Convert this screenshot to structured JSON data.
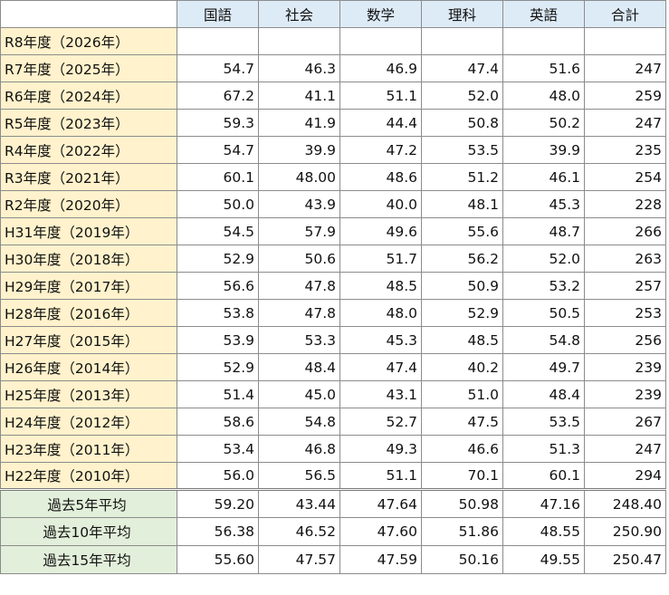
{
  "headers": [
    "国語",
    "社会",
    "数学",
    "理科",
    "英語",
    "合計"
  ],
  "rows": [
    {
      "label": "R8年度（2026年）",
      "values": [
        "",
        "",
        "",
        "",
        "",
        ""
      ]
    },
    {
      "label": "R7年度（2025年）",
      "values": [
        "54.7",
        "46.3",
        "46.9",
        "47.4",
        "51.6",
        "247"
      ]
    },
    {
      "label": "R6年度（2024年）",
      "values": [
        "67.2",
        "41.1",
        "51.1",
        "52.0",
        "48.0",
        "259"
      ]
    },
    {
      "label": "R5年度（2023年）",
      "values": [
        "59.3",
        "41.9",
        "44.4",
        "50.8",
        "50.2",
        "247"
      ]
    },
    {
      "label": "R4年度（2022年）",
      "values": [
        "54.7",
        "39.9",
        "47.2",
        "53.5",
        "39.9",
        "235"
      ]
    },
    {
      "label": "R3年度（2021年）",
      "values": [
        "60.1",
        "48.00",
        "48.6",
        "51.2",
        "46.1",
        "254"
      ]
    },
    {
      "label": "R2年度（2020年）",
      "values": [
        "50.0",
        "43.9",
        "40.0",
        "48.1",
        "45.3",
        "228"
      ]
    },
    {
      "label": "H31年度（2019年）",
      "values": [
        "54.5",
        "57.9",
        "49.6",
        "55.6",
        "48.7",
        "266"
      ]
    },
    {
      "label": "H30年度（2018年）",
      "values": [
        "52.9",
        "50.6",
        "51.7",
        "56.2",
        "52.0",
        "263"
      ]
    },
    {
      "label": "H29年度（2017年）",
      "values": [
        "56.6",
        "47.8",
        "48.5",
        "50.9",
        "53.2",
        "257"
      ]
    },
    {
      "label": "H28年度（2016年）",
      "values": [
        "53.8",
        "47.8",
        "48.0",
        "52.9",
        "50.5",
        "253"
      ]
    },
    {
      "label": "H27年度（2015年）",
      "values": [
        "53.9",
        "53.3",
        "45.3",
        "48.5",
        "54.8",
        "256"
      ]
    },
    {
      "label": "H26年度（2014年）",
      "values": [
        "52.9",
        "48.4",
        "47.4",
        "40.2",
        "49.7",
        "239"
      ]
    },
    {
      "label": "H25年度（2013年）",
      "values": [
        "51.4",
        "45.0",
        "43.1",
        "51.0",
        "48.4",
        "239"
      ]
    },
    {
      "label": "H24年度（2012年）",
      "values": [
        "58.6",
        "54.8",
        "52.7",
        "47.5",
        "53.5",
        "267"
      ]
    },
    {
      "label": "H23年度（2011年）",
      "values": [
        "53.4",
        "46.8",
        "49.3",
        "46.6",
        "51.3",
        "247"
      ]
    },
    {
      "label": "H22年度（2010年）",
      "values": [
        "56.0",
        "56.5",
        "51.1",
        "70.1",
        "60.1",
        "294"
      ]
    }
  ],
  "averages": [
    {
      "label": "過去5年平均",
      "values": [
        "59.20",
        "43.44",
        "47.64",
        "50.98",
        "47.16",
        "248.40"
      ]
    },
    {
      "label": "過去10年平均",
      "values": [
        "56.38",
        "46.52",
        "47.60",
        "51.86",
        "48.55",
        "250.90"
      ]
    },
    {
      "label": "過去15年平均",
      "values": [
        "55.60",
        "47.57",
        "47.59",
        "50.16",
        "49.55",
        "250.47"
      ]
    }
  ],
  "colors": {
    "header_bg": "#ddebf7",
    "year_label_bg": "#fff2cc",
    "average_label_bg": "#e2efda",
    "border": "#8c8c8c"
  }
}
